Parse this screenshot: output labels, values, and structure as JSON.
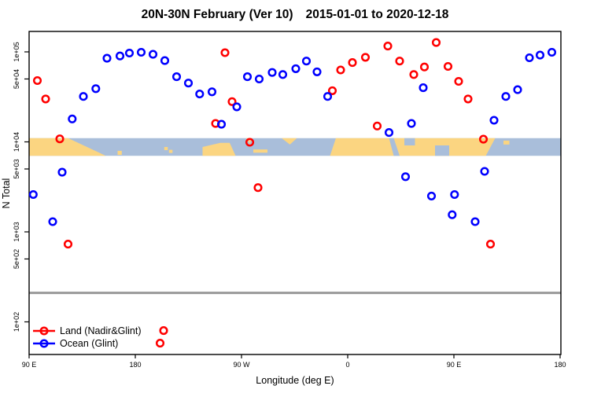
{
  "title": {
    "left": "20N-30N February (Ver 10)",
    "right": "2015-01-01 to 2020-12-18"
  },
  "legend": {
    "items": [
      {
        "label": "Land (Nadir&Glint)",
        "color": "#FF0000"
      },
      {
        "label": "Ocean (Glint)",
        "color": "#0000FF"
      }
    ]
  },
  "chart_data": {
    "type": "scatter",
    "title": "20N-30N February (Ver 10)  2015-01-01 to 2020-12-18",
    "xlabel": "Longitude (deg E)",
    "ylabel": "N Total",
    "x_axis": {
      "range": [
        90,
        540
      ],
      "ticks": [
        90,
        180,
        270,
        360,
        450,
        540
      ],
      "labels": [
        "90 E",
        "180",
        "90 W",
        "0",
        "90 E",
        "180"
      ]
    },
    "y_axis": {
      "scale": "log",
      "range": [
        55,
        170000
      ],
      "ticks": [
        100000,
        50000,
        10000,
        5000,
        1000,
        500,
        100
      ],
      "labels": [
        "1e+05",
        "5e+04",
        "1e+04",
        "5e+03",
        "1e+03",
        "5e+02",
        "1e+02"
      ]
    },
    "threshold_line": {
      "n": 210,
      "color": "#999999",
      "width": 3
    },
    "map_strip": {
      "top_n": 11000,
      "bottom_n": 7000,
      "ocean_color": "#A9BEDA",
      "land_color": "#FBD581",
      "land_shapes": [
        [
          [
            90,
            0
          ],
          [
            123,
            0
          ],
          [
            155,
            1
          ],
          [
            90,
            1
          ]
        ],
        [
          [
            165,
            0.72
          ],
          [
            168.5,
            0.72
          ],
          [
            168.5,
            0.95
          ],
          [
            165,
            0.95
          ]
        ],
        [
          [
            204.5,
            0.5
          ],
          [
            207.5,
            0.5
          ],
          [
            207.5,
            0.68
          ],
          [
            204.5,
            0.68
          ]
        ],
        [
          [
            208.5,
            0.66
          ],
          [
            211.5,
            0.66
          ],
          [
            211.5,
            0.84
          ],
          [
            208.5,
            0.84
          ]
        ],
        [
          [
            237,
            0.5
          ],
          [
            252,
            0.27
          ],
          [
            260,
            0.27
          ],
          [
            265,
            1
          ],
          [
            237,
            1
          ]
        ],
        [
          [
            274,
            0
          ],
          [
            279,
            0
          ],
          [
            277,
            0.32
          ]
        ],
        [
          [
            280,
            0.64
          ],
          [
            292,
            0.64
          ],
          [
            292,
            0.82
          ],
          [
            280,
            0.82
          ]
        ],
        [
          [
            304,
            0
          ],
          [
            317,
            0
          ],
          [
            311,
            0.36
          ]
        ],
        [
          [
            350,
            0
          ],
          [
            485,
            0
          ],
          [
            477,
            1
          ],
          [
            345,
            1
          ]
        ],
        [
          [
            492,
            0.14
          ],
          [
            497,
            0.14
          ],
          [
            497,
            0.36
          ],
          [
            492,
            0.36
          ]
        ]
      ],
      "ocean_notches": [
        [
          [
            395,
            0
          ],
          [
            399,
            0
          ],
          [
            404,
            1
          ],
          [
            399,
            1
          ]
        ],
        [
          [
            408,
            0
          ],
          [
            417,
            0
          ],
          [
            417,
            0.41
          ],
          [
            408,
            0.41
          ]
        ],
        [
          [
            434,
            0.41
          ],
          [
            446,
            0.41
          ],
          [
            446,
            1
          ],
          [
            434,
            1
          ]
        ]
      ]
    },
    "series": [
      {
        "name": "Land (Nadir&Glint)",
        "color": "#FF0000",
        "points": [
          {
            "lon": 97,
            "n": 48000
          },
          {
            "lon": 104,
            "n": 30000
          },
          {
            "lon": 116,
            "n": 10800
          },
          {
            "lon": 123,
            "n": 730
          },
          {
            "lon": 201,
            "n": 58
          },
          {
            "lon": 204,
            "n": 80
          },
          {
            "lon": 248,
            "n": 16000
          },
          {
            "lon": 256,
            "n": 98000
          },
          {
            "lon": 262,
            "n": 28000
          },
          {
            "lon": 277,
            "n": 9900
          },
          {
            "lon": 284,
            "n": 3100
          },
          {
            "lon": 347,
            "n": 37000
          },
          {
            "lon": 354,
            "n": 63000
          },
          {
            "lon": 364,
            "n": 76000
          },
          {
            "lon": 375,
            "n": 87000
          },
          {
            "lon": 385,
            "n": 15000
          },
          {
            "lon": 394,
            "n": 116000
          },
          {
            "lon": 404,
            "n": 79000
          },
          {
            "lon": 416,
            "n": 56000
          },
          {
            "lon": 425,
            "n": 68000
          },
          {
            "lon": 435,
            "n": 127000
          },
          {
            "lon": 445,
            "n": 69000
          },
          {
            "lon": 454,
            "n": 47000
          },
          {
            "lon": 462,
            "n": 30000
          },
          {
            "lon": 475,
            "n": 10700
          },
          {
            "lon": 481,
            "n": 730
          }
        ]
      },
      {
        "name": "Ocean (Glint)",
        "color": "#0000FF",
        "points": [
          {
            "lon": 93.5,
            "n": 2600
          },
          {
            "lon": 110,
            "n": 1300
          },
          {
            "lon": 118,
            "n": 4600
          },
          {
            "lon": 126.5,
            "n": 18000
          },
          {
            "lon": 136,
            "n": 32000
          },
          {
            "lon": 146.5,
            "n": 39000
          },
          {
            "lon": 156,
            "n": 85000
          },
          {
            "lon": 167,
            "n": 90000
          },
          {
            "lon": 175,
            "n": 97000
          },
          {
            "lon": 185,
            "n": 99000
          },
          {
            "lon": 195,
            "n": 94000
          },
          {
            "lon": 205,
            "n": 80000
          },
          {
            "lon": 215,
            "n": 53000
          },
          {
            "lon": 225,
            "n": 45000
          },
          {
            "lon": 234.5,
            "n": 34000
          },
          {
            "lon": 245,
            "n": 36000
          },
          {
            "lon": 253,
            "n": 15700
          },
          {
            "lon": 266,
            "n": 24500
          },
          {
            "lon": 275,
            "n": 53000
          },
          {
            "lon": 285,
            "n": 50000
          },
          {
            "lon": 296,
            "n": 59000
          },
          {
            "lon": 305,
            "n": 56000
          },
          {
            "lon": 316,
            "n": 65000
          },
          {
            "lon": 325,
            "n": 79000
          },
          {
            "lon": 334,
            "n": 60000
          },
          {
            "lon": 343,
            "n": 32000
          },
          {
            "lon": 395,
            "n": 12700
          },
          {
            "lon": 409,
            "n": 4100
          },
          {
            "lon": 414,
            "n": 16000
          },
          {
            "lon": 424,
            "n": 40000
          },
          {
            "lon": 431,
            "n": 2500
          },
          {
            "lon": 448.5,
            "n": 1550
          },
          {
            "lon": 450.5,
            "n": 2600
          },
          {
            "lon": 468,
            "n": 1300
          },
          {
            "lon": 476,
            "n": 4700
          },
          {
            "lon": 484,
            "n": 17400
          },
          {
            "lon": 494,
            "n": 32000
          },
          {
            "lon": 504,
            "n": 38000
          },
          {
            "lon": 514,
            "n": 86000
          },
          {
            "lon": 523,
            "n": 92000
          },
          {
            "lon": 533,
            "n": 99000
          }
        ]
      }
    ]
  }
}
